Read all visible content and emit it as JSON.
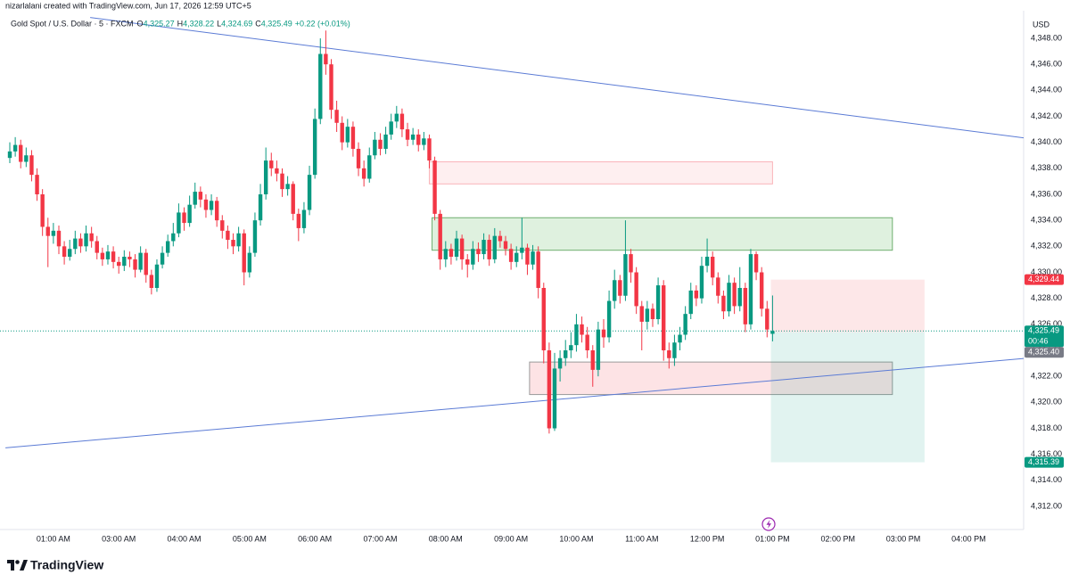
{
  "chart_data": {
    "type": "candlestick",
    "credit": "nizarlalani created with TradingView.com, Jun 17, 2026 12:59 UTC+5",
    "title": "Gold Spot / U.S. Dollar · 5 · FXCM",
    "legend_values": [
      {
        "name": "O",
        "value": 4325.27,
        "label": "4,325.27"
      },
      {
        "name": "H",
        "value": 4328.22,
        "label": "4,328.22"
      },
      {
        "name": "L",
        "value": 4324.69,
        "label": "4,324.69"
      },
      {
        "name": "C",
        "value": 4325.49,
        "label": "4,325.49"
      }
    ],
    "change_label": "+0.22 (+0.01%)",
    "y_axis_label": "USD",
    "brand": "TradingView",
    "up_color": "#089981",
    "down_color": "#f23645",
    "grid": false,
    "ylim": [
      4311,
      4349.7
    ],
    "yticks": [
      {
        "value": 4312,
        "label": "4,312.00"
      },
      {
        "value": 4314,
        "label": "4,314.00"
      },
      {
        "value": 4316,
        "label": "4,316.00"
      },
      {
        "value": 4318,
        "label": "4,318.00"
      },
      {
        "value": 4320,
        "label": "4,320.00"
      },
      {
        "value": 4322,
        "label": "4,322.00"
      },
      {
        "value": 4324,
        "label": "4,324.00"
      },
      {
        "value": 4326,
        "label": "4,326.00"
      },
      {
        "value": 4328,
        "label": "4,328.00"
      },
      {
        "value": 4330,
        "label": "4,330.00"
      },
      {
        "value": 4332,
        "label": "4,332.00"
      },
      {
        "value": 4334,
        "label": "4,334.00"
      },
      {
        "value": 4336,
        "label": "4,336.00"
      },
      {
        "value": 4338,
        "label": "4,338.00"
      },
      {
        "value": 4340,
        "label": "4,340.00"
      },
      {
        "value": 4342,
        "label": "4,342.00"
      },
      {
        "value": 4344,
        "label": "4,344.00"
      },
      {
        "value": 4346,
        "label": "4,346.00"
      },
      {
        "value": 4348,
        "label": "4,348.00"
      }
    ],
    "xticks": [
      {
        "value": 8,
        "label": "01:00 AM"
      },
      {
        "value": 20,
        "label": "03:00 AM"
      },
      {
        "value": 32,
        "label": "04:00 AM"
      },
      {
        "value": 44,
        "label": "05:00 AM"
      },
      {
        "value": 56,
        "label": "06:00 AM"
      },
      {
        "value": 68,
        "label": "07:00 AM"
      },
      {
        "value": 80,
        "label": "08:00 AM"
      },
      {
        "value": 92,
        "label": "09:00 AM"
      },
      {
        "value": 104,
        "label": "10:00 AM"
      },
      {
        "value": 116,
        "label": "11:00 AM"
      },
      {
        "value": 128,
        "label": "12:00 PM"
      },
      {
        "value": 140,
        "label": "01:00 PM"
      },
      {
        "value": 152,
        "label": "02:00 PM"
      },
      {
        "value": 164,
        "label": "03:00 PM"
      },
      {
        "value": 176,
        "label": "04:00 PM"
      }
    ],
    "open": [
      4338.8,
      4339.3,
      4339.8,
      4338.5,
      4339.0,
      4337.5,
      4336.0,
      4333.5,
      4332.8,
      4333.2,
      4332.0,
      4331.2,
      4331.8,
      4332.6,
      4332.0,
      4333.0,
      4332.4,
      4331.5,
      4331.0,
      4331.6,
      4330.8,
      4330.5,
      4331.2,
      4331.0,
      4330.2,
      4331.5,
      4329.8,
      4328.8,
      4330.6,
      4331.5,
      4332.4,
      4333.0,
      4334.6,
      4333.8,
      4335.2,
      4336.2,
      4335.6,
      4334.8,
      4335.5,
      4334.0,
      4333.2,
      4332.5,
      4332.0,
      4333.0,
      4330.0,
      4331.5,
      4334.0,
      4336.0,
      4338.6,
      4338.0,
      4337.6,
      4336.4,
      4336.8,
      4334.5,
      4333.4,
      4334.8,
      4337.5,
      4341.8,
      4346.8,
      4346.0,
      4342.5,
      4341.5,
      4340.0,
      4341.2,
      4339.5,
      4338.0,
      4337.2,
      4339.0,
      4340.2,
      4339.5,
      4340.6,
      4341.6,
      4342.2,
      4341.0,
      4340.2,
      4340.6,
      4339.8,
      4340.3,
      4338.6,
      4334.5,
      4331.0,
      4331.8,
      4331.2,
      4332.6,
      4331.0,
      4330.6,
      4331.8,
      4331.4,
      4332.5,
      4331.0,
      4332.8,
      4332.4,
      4331.8,
      4330.8,
      4331.5,
      4331.9,
      4330.6,
      4331.6,
      4328.8,
      4324.0,
      4318.0,
      4322.6,
      4323.4,
      4324.0,
      4324.4,
      4326.0,
      4325.2,
      4324.0,
      4322.5,
      4325.6,
      4325.0,
      4327.8,
      4329.4,
      4328.2,
      4331.4,
      4330.0,
      4327.4,
      4326.2,
      4327.2,
      4326.4,
      4329.0,
      4324.0,
      4323.4,
      4324.6,
      4325.2,
      4326.8,
      4328.6,
      4328.0,
      4330.5,
      4331.2,
      4329.6,
      4328.2,
      4327.0,
      4329.2,
      4327.4,
      4328.8,
      4326.0,
      4331.4,
      4330.0,
      4327.2,
      4325.27
    ],
    "high": [
      4340.0,
      4340.4,
      4340.2,
      4339.6,
      4339.4,
      4338.0,
      4336.4,
      4334.2,
      4333.8,
      4333.6,
      4332.4,
      4332.5,
      4333.2,
      4333.0,
      4333.6,
      4333.5,
      4332.8,
      4331.9,
      4332.1,
      4332.0,
      4331.2,
      4331.7,
      4331.6,
      4331.4,
      4332.0,
      4331.8,
      4330.2,
      4331.0,
      4332.0,
      4332.9,
      4333.8,
      4335.3,
      4335.0,
      4335.9,
      4336.9,
      4336.6,
      4336.0,
      4336.0,
      4335.8,
      4334.4,
      4333.6,
      4333.0,
      4333.5,
      4333.3,
      4332.0,
      4334.6,
      4336.8,
      4339.6,
      4339.2,
      4338.6,
      4338.0,
      4337.4,
      4337.0,
      4334.9,
      4335.4,
      4338.2,
      4342.6,
      4348.0,
      4348.6,
      4346.4,
      4343.2,
      4342.0,
      4341.8,
      4341.6,
      4340.0,
      4338.6,
      4339.6,
      4340.8,
      4340.7,
      4341.2,
      4342.2,
      4342.8,
      4342.6,
      4341.5,
      4341.1,
      4341.0,
      4340.8,
      4340.6,
      4338.9,
      4334.8,
      4332.4,
      4332.2,
      4333.2,
      4332.9,
      4331.4,
      4332.4,
      4332.3,
      4333.0,
      4332.9,
      4333.4,
      4333.2,
      4332.8,
      4332.2,
      4332.0,
      4334.2,
      4332.2,
      4332.1,
      4332.0,
      4329.2,
      4324.6,
      4323.8,
      4324.0,
      4324.8,
      4325.4,
      4326.8,
      4326.6,
      4325.8,
      4324.4,
      4326.2,
      4326.4,
      4328.6,
      4330.2,
      4329.8,
      4334.0,
      4331.8,
      4330.4,
      4327.8,
      4327.8,
      4327.6,
      4329.6,
      4329.4,
      4324.6,
      4325.2,
      4325.8,
      4327.4,
      4329.2,
      4329.0,
      4331.2,
      4332.6,
      4331.6,
      4330.0,
      4328.6,
      4329.8,
      4329.6,
      4330.4,
      4329.2,
      4331.8,
      4331.6,
      4330.4,
      4327.8,
      4328.22
    ],
    "low": [
      4338.4,
      4338.9,
      4338.0,
      4338.1,
      4337.0,
      4335.5,
      4332.8,
      4330.4,
      4332.2,
      4331.4,
      4330.6,
      4330.9,
      4331.4,
      4331.5,
      4331.6,
      4331.9,
      4331.0,
      4330.5,
      4330.6,
      4330.3,
      4329.9,
      4330.1,
      4330.4,
      4329.6,
      4330.0,
      4329.2,
      4328.3,
      4328.5,
      4330.3,
      4331.2,
      4332.0,
      4332.7,
      4333.2,
      4333.5,
      4334.9,
      4335.0,
      4334.2,
      4334.4,
      4333.5,
      4332.6,
      4331.8,
      4331.4,
      4331.6,
      4329.0,
      4329.6,
      4331.2,
      4333.6,
      4335.6,
      4337.4,
      4337.0,
      4335.8,
      4335.9,
      4334.0,
      4332.4,
      4333.0,
      4334.4,
      4337.2,
      4341.4,
      4345.2,
      4341.8,
      4340.8,
      4339.4,
      4339.6,
      4338.9,
      4337.4,
      4336.6,
      4336.9,
      4338.7,
      4339.0,
      4339.1,
      4340.2,
      4341.1,
      4340.4,
      4339.7,
      4339.8,
      4339.3,
      4339.4,
      4338.0,
      4334.0,
      4330.2,
      4330.4,
      4330.6,
      4330.9,
      4330.2,
      4329.6,
      4330.2,
      4330.8,
      4331.0,
      4330.5,
      4330.7,
      4331.9,
      4331.3,
      4330.2,
      4330.4,
      4331.0,
      4329.8,
      4330.2,
      4328.0,
      4323.0,
      4317.6,
      4317.8,
      4321.6,
      4322.8,
      4323.4,
      4323.9,
      4324.6,
      4323.4,
      4321.2,
      4322.0,
      4324.2,
      4324.6,
      4327.2,
      4327.6,
      4327.8,
      4329.2,
      4326.8,
      4324.0,
      4325.6,
      4325.8,
      4326.0,
      4323.2,
      4322.6,
      4322.8,
      4324.0,
      4324.8,
      4326.4,
      4327.4,
      4327.6,
      4330.0,
      4329.0,
      4327.6,
      4326.4,
      4326.6,
      4326.8,
      4327.0,
      4325.4,
      4325.6,
      4329.4,
      4326.6,
      4325.0,
      4324.69
    ],
    "close": [
      4339.3,
      4339.8,
      4338.5,
      4339.0,
      4337.5,
      4336.0,
      4333.5,
      4332.8,
      4333.2,
      4332.0,
      4331.2,
      4331.8,
      4332.6,
      4332.0,
      4333.0,
      4332.4,
      4331.5,
      4331.0,
      4331.6,
      4330.8,
      4330.5,
      4331.2,
      4331.0,
      4330.2,
      4331.5,
      4329.8,
      4328.8,
      4330.6,
      4331.5,
      4332.4,
      4333.0,
      4334.6,
      4333.8,
      4335.2,
      4336.2,
      4335.6,
      4334.8,
      4335.5,
      4334.0,
      4333.2,
      4332.5,
      4332.0,
      4333.0,
      4330.0,
      4331.5,
      4334.0,
      4336.0,
      4338.6,
      4338.0,
      4337.6,
      4336.4,
      4336.8,
      4334.5,
      4333.4,
      4334.8,
      4337.5,
      4341.8,
      4346.8,
      4346.0,
      4342.5,
      4341.5,
      4340.0,
      4341.2,
      4339.5,
      4338.0,
      4337.2,
      4339.0,
      4340.2,
      4339.5,
      4340.6,
      4341.6,
      4342.2,
      4341.0,
      4340.2,
      4340.6,
      4339.8,
      4340.3,
      4338.6,
      4334.5,
      4331.0,
      4331.8,
      4331.2,
      4332.6,
      4331.0,
      4330.6,
      4331.8,
      4331.4,
      4332.5,
      4331.0,
      4332.8,
      4332.4,
      4331.8,
      4330.8,
      4331.5,
      4331.9,
      4330.6,
      4331.6,
      4328.8,
      4324.0,
      4318.0,
      4322.6,
      4323.4,
      4324.0,
      4324.4,
      4326.0,
      4325.2,
      4324.0,
      4322.5,
      4325.6,
      4325.0,
      4327.8,
      4329.4,
      4328.2,
      4331.4,
      4330.0,
      4327.4,
      4326.2,
      4327.2,
      4326.4,
      4329.0,
      4324.0,
      4323.4,
      4324.6,
      4325.2,
      4326.8,
      4328.6,
      4328.0,
      4330.5,
      4331.2,
      4329.6,
      4328.2,
      4327.0,
      4329.2,
      4327.4,
      4328.8,
      4326.0,
      4331.4,
      4330.0,
      4327.2,
      4325.6,
      4325.49
    ],
    "trendlines": [
      {
        "x": [
          14.75,
          186.9
        ],
        "y": [
          4349.6,
          4340.3
        ],
        "color": "#5b7bd5"
      },
      {
        "x": [
          -0.8,
          186.9
        ],
        "y": [
          4316.5,
          4323.4
        ],
        "color": "#5b7bd5"
      }
    ],
    "zones": [
      {
        "x": [
          77,
          140
        ],
        "y": [
          4336.8,
          4338.5
        ],
        "fill": "rgba(242,54,69,0.08)",
        "stroke": "rgba(242,54,69,0.35)"
      },
      {
        "x": [
          77.5,
          162
        ],
        "y": [
          4331.7,
          4334.2
        ],
        "fill": "rgba(76,175,80,0.18)",
        "stroke": "#6fae6f"
      },
      {
        "x": [
          95.4,
          162
        ],
        "y": [
          4320.6,
          4323.1
        ],
        "fill": "rgba(242,54,69,0.14)",
        "stroke": "#9a9a9a"
      }
    ],
    "position": {
      "x": [
        139.7,
        167.9
      ],
      "stop": 4329.44,
      "entry": 4325.4,
      "target": 4315.39,
      "stop_fill": "rgba(242,54,69,0.12)",
      "target_fill": "rgba(8,153,129,0.12)"
    },
    "price_labels": [
      {
        "value": 4329.44,
        "label": "4,329.44",
        "color": "#f23645"
      },
      {
        "value": 4325.49,
        "label": "4,325.49",
        "sublabel": "00:46",
        "color": "#089981"
      },
      {
        "value": 4325.4,
        "label": "4,325.40",
        "color": "#787b86"
      },
      {
        "value": 4315.39,
        "label": "4,315.39",
        "color": "#089981"
      }
    ]
  }
}
